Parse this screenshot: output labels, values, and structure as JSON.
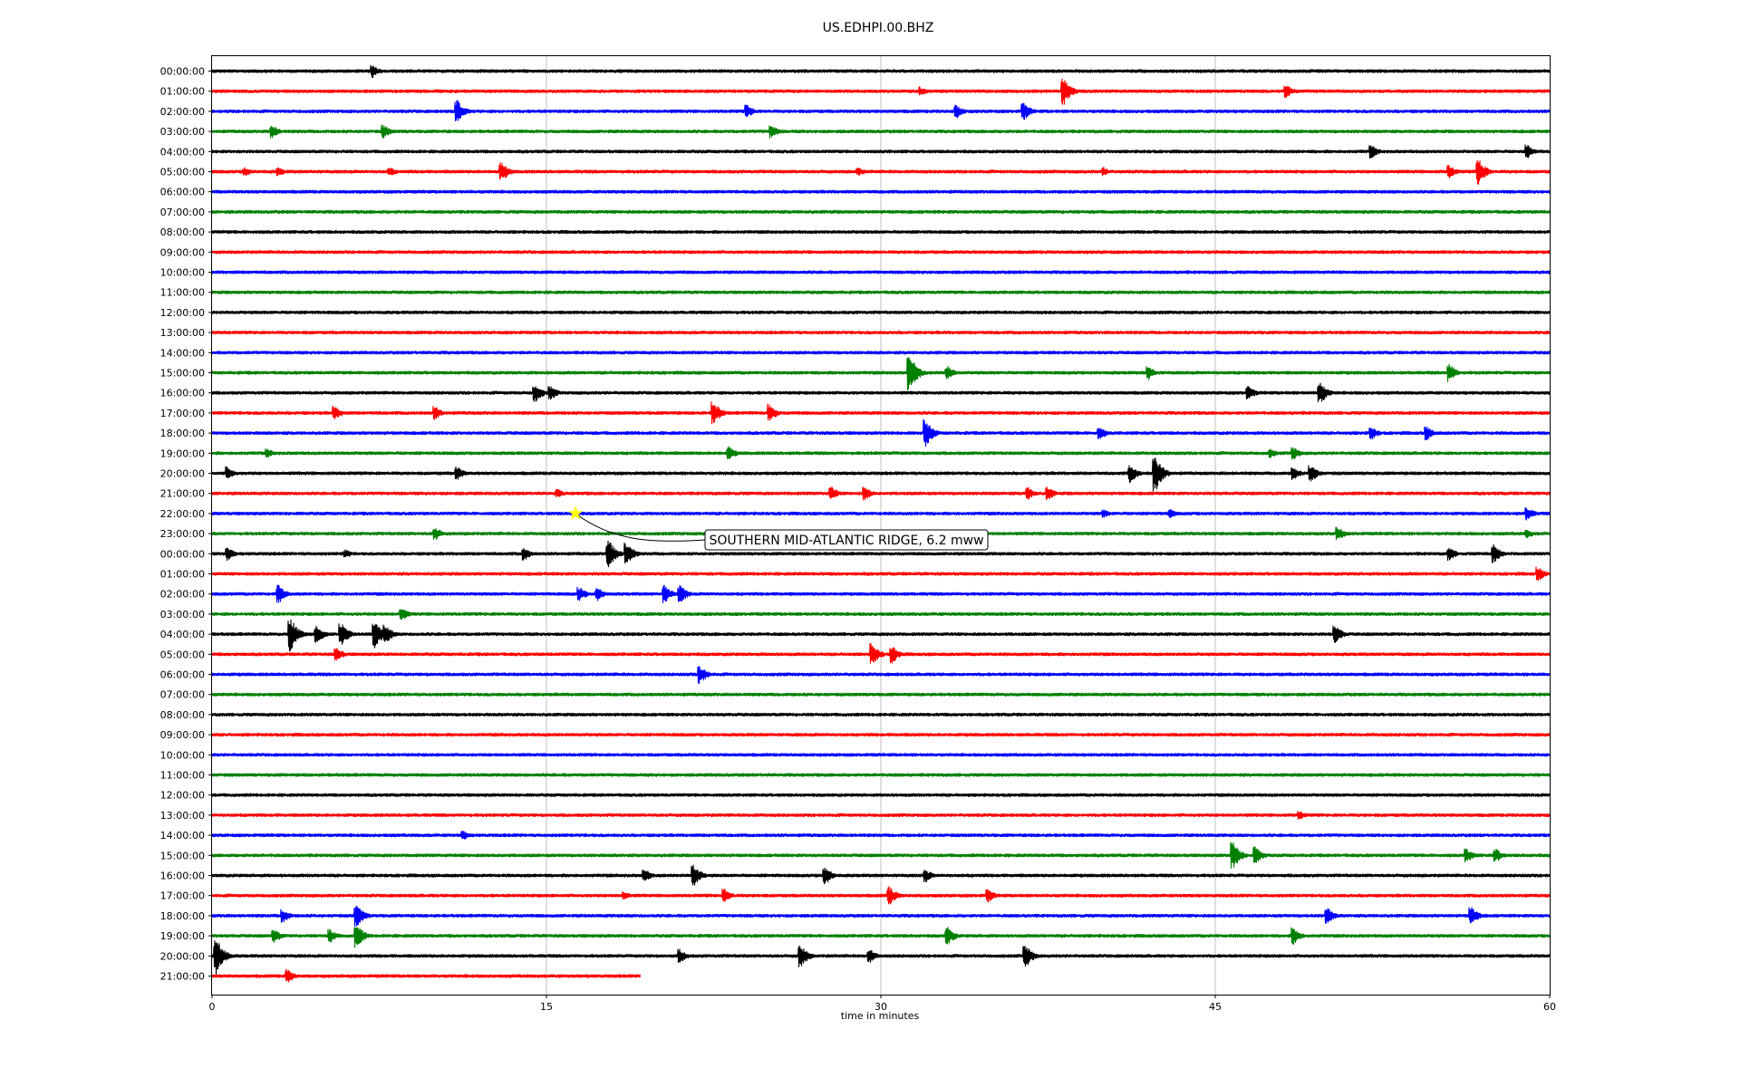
{
  "chart_data": {
    "type": "line",
    "title": "US.EDHPI.00.BHZ",
    "xlabel": "time in minutes",
    "ylabel": "",
    "xlim": [
      0,
      60
    ],
    "x_ticks": [
      "0",
      "15",
      "30",
      "45",
      "60"
    ],
    "x_tick_values": [
      0,
      15,
      30,
      45,
      60
    ],
    "grid": "vertical",
    "line_colors": [
      "#000000",
      "#ff0000",
      "#0000ff",
      "#008000"
    ],
    "row_labels": [
      "00:00:00",
      "01:00:00",
      "02:00:00",
      "03:00:00",
      "04:00:00",
      "05:00:00",
      "06:00:00",
      "07:00:00",
      "08:00:00",
      "09:00:00",
      "10:00:00",
      "11:00:00",
      "12:00:00",
      "13:00:00",
      "14:00:00",
      "15:00:00",
      "16:00:00",
      "17:00:00",
      "18:00:00",
      "19:00:00",
      "20:00:00",
      "21:00:00",
      "22:00:00",
      "23:00:00",
      "00:00:00",
      "01:00:00",
      "02:00:00",
      "03:00:00",
      "04:00:00",
      "05:00:00",
      "06:00:00",
      "07:00:00",
      "08:00:00",
      "09:00:00",
      "10:00:00",
      "11:00:00",
      "12:00:00",
      "13:00:00",
      "14:00:00",
      "15:00:00",
      "16:00:00",
      "17:00:00",
      "18:00:00",
      "19:00:00",
      "20:00:00",
      "21:00:00"
    ],
    "last_row_end_minute": 19.2,
    "events": [
      {
        "row": 22,
        "minute": 16.3,
        "marker": "star",
        "marker_color": "#ffff00",
        "label": "SOUTHERN MID-ATLANTIC RIDGE, 6.2 mww"
      }
    ],
    "bursts": [
      [
        0,
        7.2,
        3
      ],
      [
        1,
        31.8,
        2
      ],
      [
        1,
        38.2,
        6
      ],
      [
        1,
        48.2,
        3
      ],
      [
        2,
        11.0,
        5
      ],
      [
        2,
        24.0,
        3
      ],
      [
        2,
        33.4,
        3
      ],
      [
        2,
        36.4,
        4
      ],
      [
        3,
        2.7,
        3
      ],
      [
        3,
        7.7,
        3
      ],
      [
        3,
        25.1,
        3
      ],
      [
        4,
        52.0,
        3
      ],
      [
        4,
        59.0,
        3
      ],
      [
        5,
        1.5,
        2
      ],
      [
        5,
        3.0,
        2
      ],
      [
        5,
        8.0,
        2
      ],
      [
        5,
        13.0,
        4
      ],
      [
        5,
        29.0,
        2
      ],
      [
        5,
        40.0,
        2
      ],
      [
        5,
        55.5,
        3
      ],
      [
        5,
        56.8,
        6
      ],
      [
        15,
        31.3,
        8
      ],
      [
        15,
        33.0,
        3
      ],
      [
        15,
        42.0,
        3
      ],
      [
        15,
        55.5,
        4
      ],
      [
        16,
        14.5,
        4
      ],
      [
        16,
        15.2,
        3
      ],
      [
        16,
        46.5,
        3
      ],
      [
        16,
        49.7,
        5
      ],
      [
        17,
        5.5,
        3
      ],
      [
        17,
        10.0,
        3
      ],
      [
        17,
        22.5,
        5
      ],
      [
        17,
        25.0,
        4
      ],
      [
        18,
        32.0,
        6
      ],
      [
        18,
        39.8,
        3
      ],
      [
        18,
        52.0,
        3
      ],
      [
        18,
        54.5,
        3
      ],
      [
        19,
        2.5,
        2
      ],
      [
        19,
        23.2,
        3
      ],
      [
        19,
        47.5,
        2
      ],
      [
        19,
        48.5,
        3
      ],
      [
        20,
        0.7,
        3
      ],
      [
        20,
        11.0,
        3
      ],
      [
        20,
        41.2,
        4
      ],
      [
        20,
        42.3,
        8
      ],
      [
        20,
        48.5,
        3
      ],
      [
        20,
        49.3,
        4
      ],
      [
        21,
        15.5,
        2
      ],
      [
        21,
        27.8,
        3
      ],
      [
        21,
        29.3,
        3
      ],
      [
        21,
        36.6,
        3
      ],
      [
        21,
        37.5,
        3
      ],
      [
        22,
        40.0,
        2
      ],
      [
        22,
        43.0,
        2
      ],
      [
        22,
        59.0,
        3
      ],
      [
        23,
        10.0,
        3
      ],
      [
        23,
        50.5,
        3
      ],
      [
        23,
        59.0,
        2
      ],
      [
        24,
        0.7,
        3
      ],
      [
        24,
        6.0,
        2
      ],
      [
        24,
        14.0,
        3
      ],
      [
        24,
        17.8,
        6
      ],
      [
        24,
        18.6,
        5
      ],
      [
        24,
        55.5,
        3
      ],
      [
        24,
        57.5,
        4
      ],
      [
        25,
        59.5,
        3
      ],
      [
        26,
        3.0,
        4
      ],
      [
        26,
        16.5,
        3
      ],
      [
        26,
        17.3,
        3
      ],
      [
        26,
        20.3,
        4
      ],
      [
        26,
        21.0,
        4
      ],
      [
        27,
        8.5,
        3
      ],
      [
        28,
        3.5,
        8
      ],
      [
        28,
        4.7,
        4
      ],
      [
        28,
        5.8,
        5
      ],
      [
        28,
        7.3,
        6
      ],
      [
        28,
        7.8,
        4
      ],
      [
        28,
        50.4,
        4
      ],
      [
        29,
        5.6,
        3
      ],
      [
        29,
        29.6,
        5
      ],
      [
        29,
        30.5,
        4
      ],
      [
        30,
        21.9,
        4
      ],
      [
        37,
        48.8,
        2
      ],
      [
        38,
        11.3,
        2
      ],
      [
        39,
        45.8,
        6
      ],
      [
        39,
        46.8,
        4
      ],
      [
        39,
        56.3,
        3
      ],
      [
        39,
        57.6,
        3
      ],
      [
        40,
        19.4,
        3
      ],
      [
        40,
        21.6,
        5
      ],
      [
        40,
        27.5,
        4
      ],
      [
        40,
        32.0,
        3
      ],
      [
        41,
        18.5,
        2
      ],
      [
        41,
        23.0,
        3
      ],
      [
        41,
        30.4,
        4
      ],
      [
        41,
        34.8,
        3
      ],
      [
        42,
        3.2,
        3
      ],
      [
        42,
        6.5,
        5
      ],
      [
        42,
        50.0,
        4
      ],
      [
        42,
        56.5,
        4
      ],
      [
        43,
        2.8,
        3
      ],
      [
        43,
        5.3,
        3
      ],
      [
        43,
        6.5,
        5
      ],
      [
        43,
        33.0,
        4
      ],
      [
        43,
        48.5,
        4
      ],
      [
        44,
        0.2,
        8
      ],
      [
        44,
        21.0,
        3
      ],
      [
        44,
        26.4,
        5
      ],
      [
        44,
        29.5,
        3
      ],
      [
        44,
        36.5,
        5
      ],
      [
        45,
        3.4,
        3
      ]
    ]
  }
}
